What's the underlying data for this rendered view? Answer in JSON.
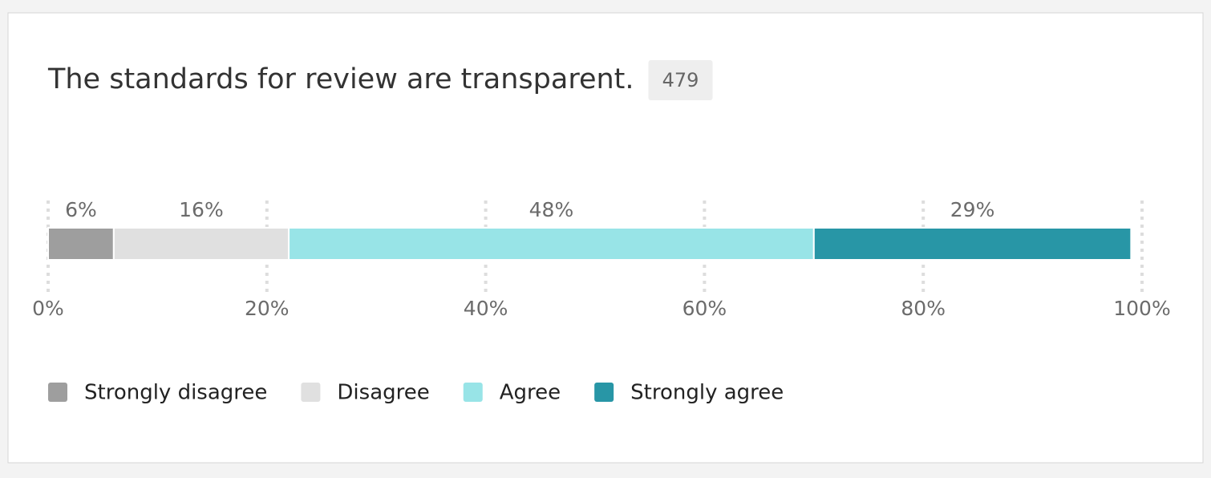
{
  "chart_data": {
    "type": "stacked-bar",
    "title": "The standards for review are transparent.",
    "count": 479,
    "series": [
      {
        "name": "Strongly disagree",
        "color": "#9e9e9e",
        "values": [
          6
        ],
        "value_labels": [
          "6%"
        ]
      },
      {
        "name": "Disagree",
        "color": "#e0e0e0",
        "values": [
          16
        ],
        "value_labels": [
          "16%"
        ]
      },
      {
        "name": "Agree",
        "color": "#98e4e7",
        "values": [
          48
        ],
        "value_labels": [
          "48%"
        ]
      },
      {
        "name": "Strongly agree",
        "color": "#2896a6",
        "values": [
          29
        ],
        "value_labels": [
          "29%"
        ]
      }
    ],
    "xlim": [
      0,
      100
    ],
    "xticks": [
      {
        "value": 0,
        "label": "0%"
      },
      {
        "value": 20,
        "label": "20%"
      },
      {
        "value": 40,
        "label": "40%"
      },
      {
        "value": 60,
        "label": "60%"
      },
      {
        "value": 80,
        "label": "80%"
      },
      {
        "value": 100,
        "label": "100%"
      }
    ],
    "grid": true
  }
}
